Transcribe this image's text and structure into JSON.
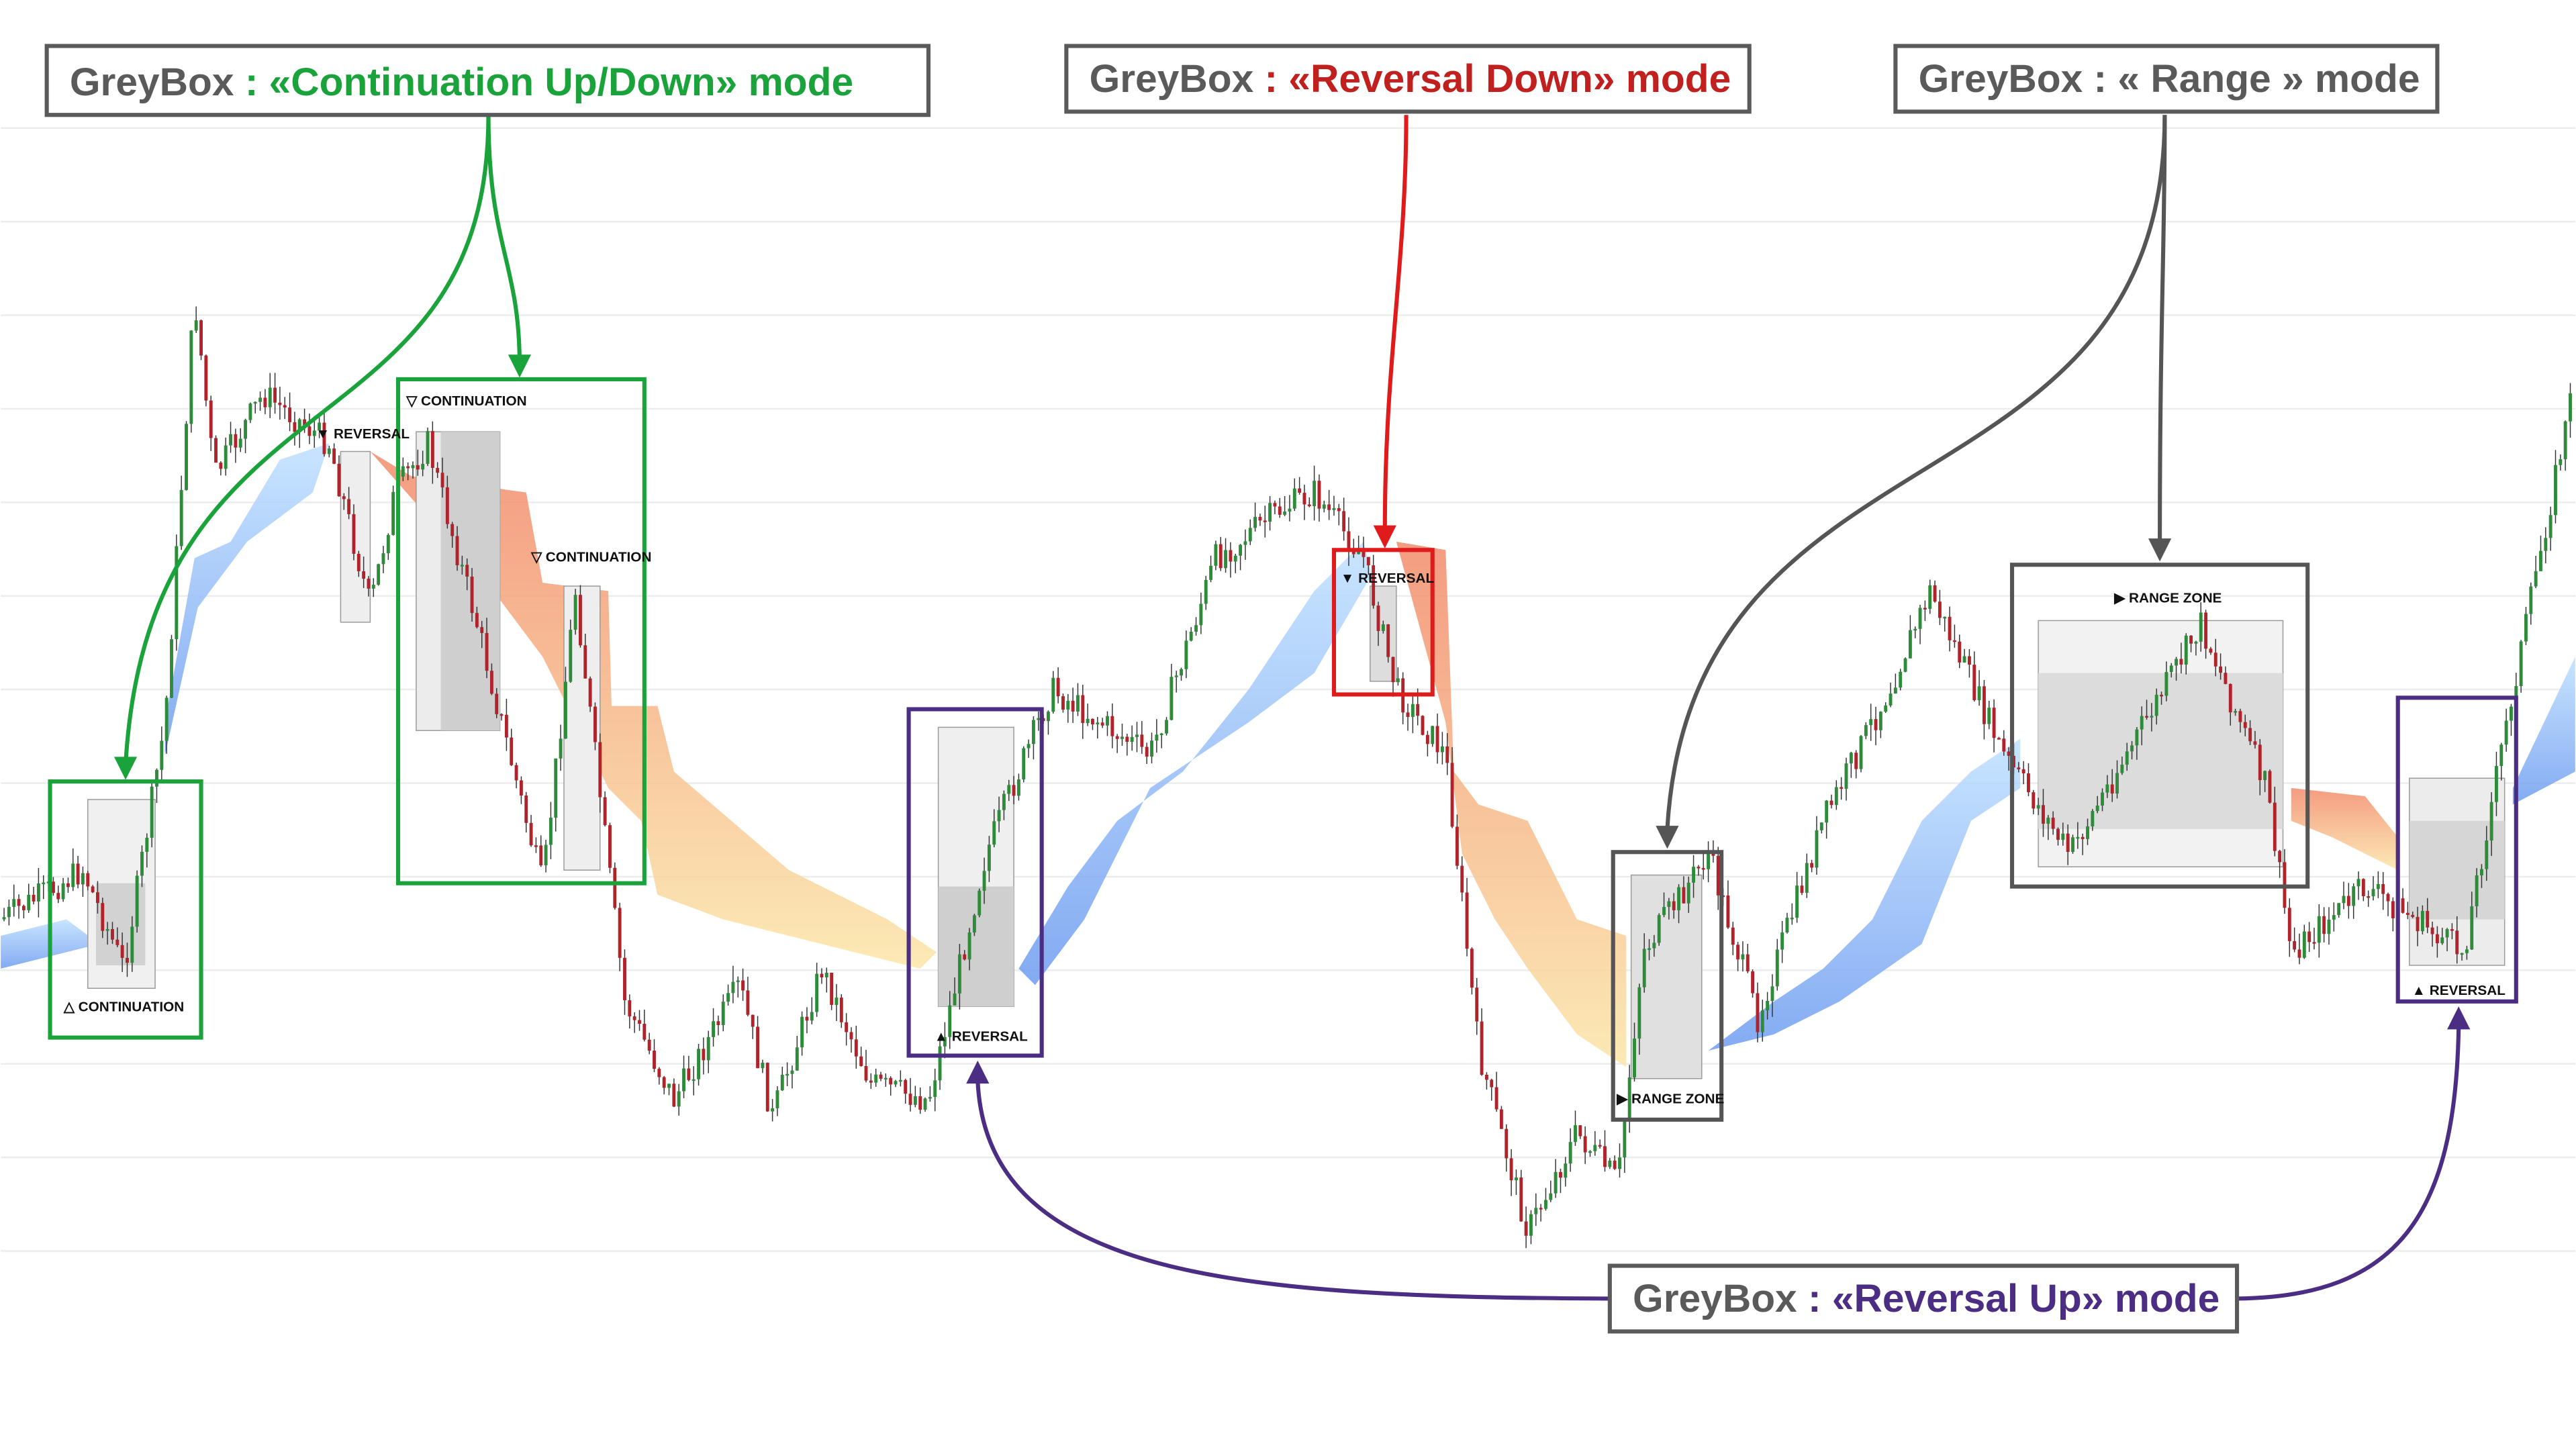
{
  "callouts": [
    {
      "prefix": "GreyBox",
      "mode": " : «Continuation Up/Down» mode"
    },
    {
      "prefix": "GreyBox",
      "mode": " : «Reversal Down» mode"
    },
    {
      "prefix": "GreyBox",
      "mode": " : « Range » mode"
    },
    {
      "prefix": "GreyBox",
      "mode": " : «Reversal Up» mode"
    }
  ],
  "zones": [
    {
      "label": "△ CONTINUATION"
    },
    {
      "label": "▼ REVERSAL"
    },
    {
      "label": "▽ CONTINUATION"
    },
    {
      "label": "▽ CONTINUATION"
    },
    {
      "label": "▼ REVERSAL"
    },
    {
      "label": "▲ REVERSAL"
    },
    {
      "label": "▶ RANGE ZONE"
    },
    {
      "label": "▶ RANGE ZONE"
    },
    {
      "label": "▲ REVERSAL"
    }
  ]
}
